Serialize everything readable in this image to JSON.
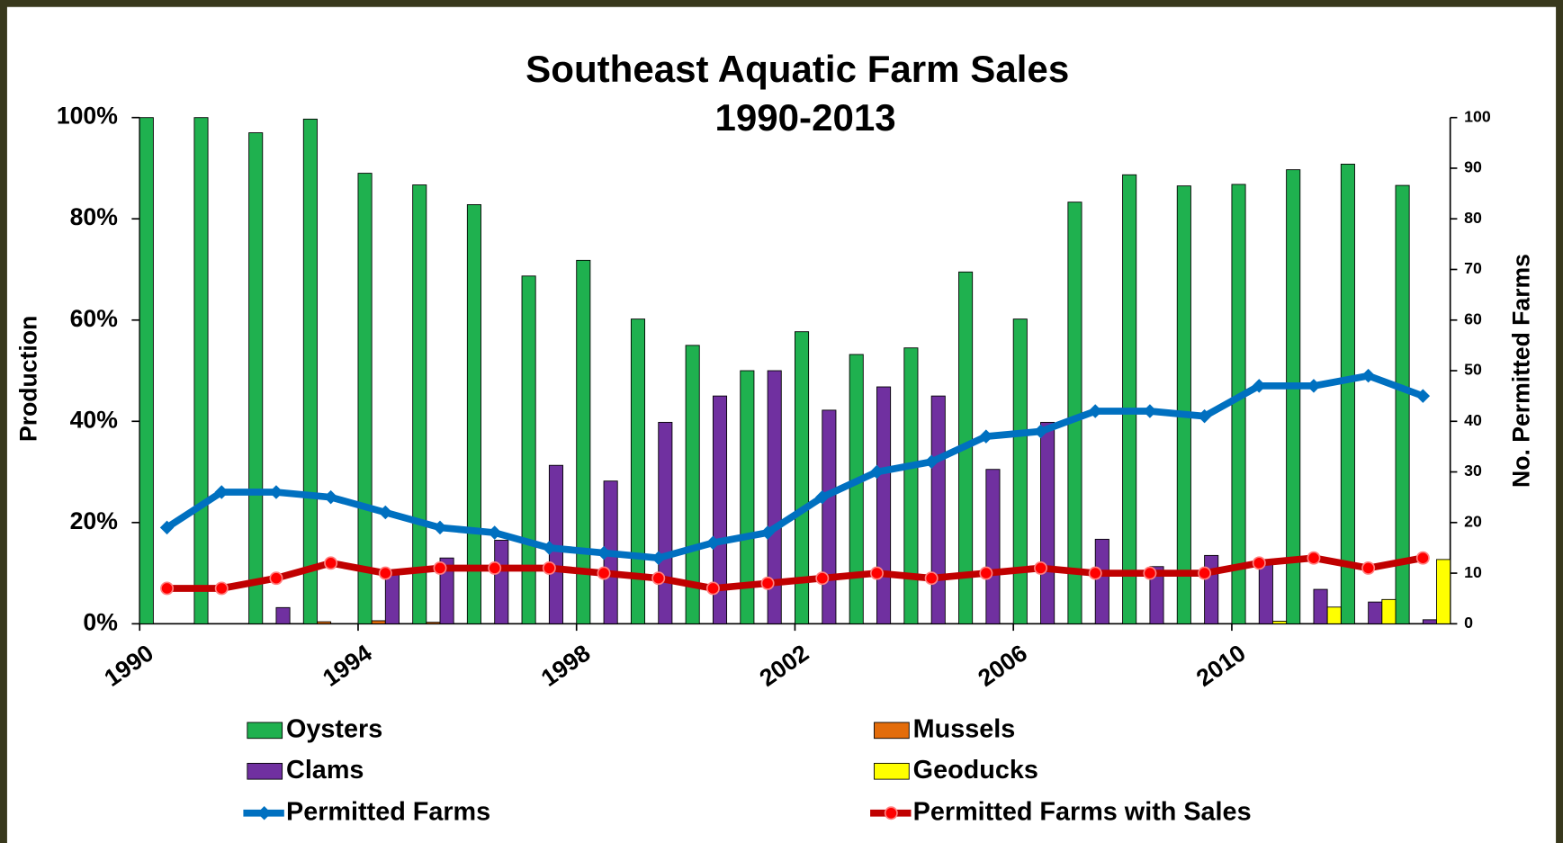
{
  "chart_data": {
    "type": "bar",
    "title": "Southeast Aquatic Farm Sales",
    "subtitle": "1990-2013",
    "y_label": "Production",
    "y2_label": "No. Permitted Farms",
    "categories": [
      "1990",
      null,
      null,
      null,
      "1994",
      null,
      null,
      null,
      "1998",
      null,
      null,
      null,
      "2002",
      null,
      null,
      null,
      "2006",
      null,
      null,
      null,
      "2010",
      null,
      null,
      null
    ],
    "ylim": [
      0,
      100
    ],
    "yticks": [
      {
        "value": 0,
        "label": "0%"
      },
      {
        "value": 20,
        "label": "20%"
      },
      {
        "value": 40,
        "label": "40%"
      },
      {
        "value": 60,
        "label": "60%"
      },
      {
        "value": 80,
        "label": "80%"
      },
      {
        "value": 100,
        "label": "100%"
      }
    ],
    "y2lim": [
      0,
      100
    ],
    "y2ticks": [
      0,
      10,
      20,
      30,
      40,
      50,
      60,
      70,
      80,
      90,
      100
    ],
    "series": [
      {
        "name": "Oysters",
        "type": "bar",
        "color": "#1fb14f",
        "values": [
          100,
          100,
          97,
          99.7,
          89,
          86.7,
          82.8,
          68.7,
          71.8,
          60.2,
          55,
          50,
          57.7,
          53.2,
          54.5,
          69.5,
          60.2,
          83.3,
          88.7,
          86.5,
          86.8,
          89.7,
          90.8,
          86.6
        ]
      },
      {
        "name": "Mussels",
        "type": "bar",
        "color": "#e36c0a",
        "values": [
          0,
          0,
          0,
          0.4,
          0.6,
          0.3,
          0,
          0,
          0,
          0,
          0,
          0,
          0,
          0,
          0,
          0,
          0,
          0,
          0,
          0,
          0,
          0,
          0,
          0
        ]
      },
      {
        "name": "Clams",
        "type": "bar",
        "color": "#7030a0",
        "values": [
          0,
          0,
          3.2,
          0,
          10.5,
          13,
          16.5,
          31.3,
          28.2,
          39.8,
          45,
          50,
          42.2,
          46.8,
          45,
          30.5,
          39.8,
          16.7,
          11.3,
          13.5,
          12.5,
          6.8,
          4.3,
          0.8
        ]
      },
      {
        "name": "Geoducks",
        "type": "bar",
        "color": "#ffff00",
        "values": [
          0,
          0,
          0,
          0,
          0,
          0,
          0,
          0,
          0,
          0,
          0,
          0,
          0,
          0,
          0,
          0,
          0,
          0,
          0,
          0,
          0.5,
          3.3,
          4.8,
          12.7
        ]
      },
      {
        "name": "Permitted Farms",
        "type": "line",
        "axis": "y2",
        "color": "#0070c0",
        "values": [
          19,
          26,
          26,
          25,
          22,
          19,
          18,
          15,
          14,
          13,
          16,
          18,
          25,
          30,
          32,
          37,
          38,
          42,
          42,
          41,
          47,
          47,
          49,
          45
        ]
      },
      {
        "name": "Permitted Farms with Sales",
        "type": "line",
        "axis": "y2",
        "color": "#c00000",
        "values": [
          7,
          7,
          9,
          12,
          10,
          11,
          11,
          11,
          10,
          9,
          7,
          8,
          9,
          10,
          9,
          10,
          11,
          10,
          10,
          10,
          12,
          13,
          11,
          13
        ]
      }
    ]
  }
}
